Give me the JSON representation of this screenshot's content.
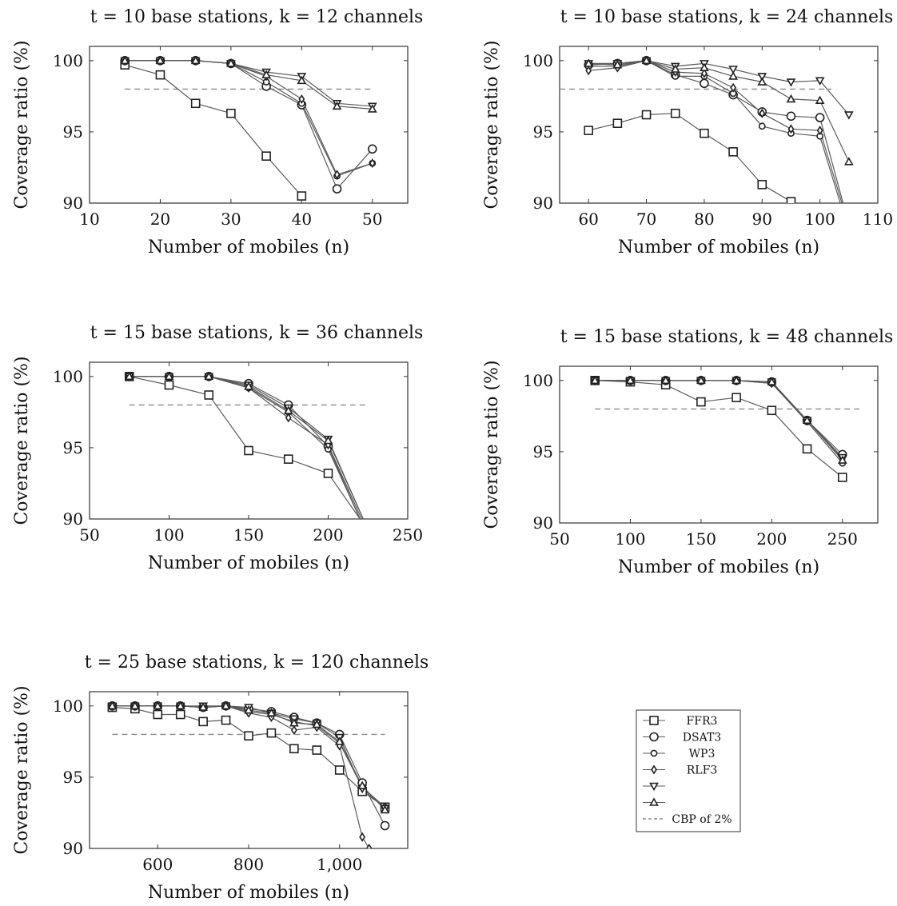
{
  "chart_data": [
    {
      "type": "line",
      "title": "t = 10 base stations, k = 12 channels",
      "xlabel": "Number of mobiles (n)",
      "ylabel": "Coverage ratio (%)",
      "xlim": [
        10,
        55
      ],
      "ylim": [
        90,
        101
      ],
      "xticks": [
        10,
        20,
        30,
        40,
        50
      ],
      "xtick_labels": [
        "10",
        "20",
        "30",
        "40",
        "50"
      ],
      "yticks": [
        90,
        95,
        100
      ],
      "ytick_labels": [
        "90",
        "95",
        "100"
      ],
      "cbp": 98,
      "cbp_range": [
        15,
        50
      ],
      "series": [
        {
          "name": "FFR3",
          "x": [
            15,
            20,
            25,
            30,
            35,
            40
          ],
          "y": [
            99.7,
            99.0,
            97.0,
            96.3,
            93.3,
            90.5
          ]
        },
        {
          "name": "DSAT3",
          "x": [
            15,
            20,
            25,
            30,
            35,
            40,
            45,
            50
          ],
          "y": [
            100,
            100,
            100,
            99.8,
            98.2,
            96.9,
            91.0,
            93.8
          ]
        },
        {
          "name": "WP3",
          "x": [
            15,
            20,
            25,
            30,
            35,
            40,
            45,
            50
          ],
          "y": [
            100,
            100,
            100,
            99.8,
            98.5,
            97.0,
            91.9,
            92.8
          ]
        },
        {
          "name": "RLF3",
          "x": [
            15,
            20,
            25,
            30,
            35,
            40,
            45,
            50
          ],
          "y": [
            100,
            100,
            100,
            99.8,
            98.9,
            97.3,
            92.0,
            92.8
          ]
        },
        {
          "name": "",
          "x": [
            15,
            20,
            25,
            30,
            35,
            40,
            45,
            50
          ],
          "y": [
            100,
            100,
            100,
            99.8,
            99.2,
            98.9,
            97.0,
            96.8
          ]
        },
        {
          "name": "",
          "x": [
            15,
            20,
            25,
            30,
            35,
            40,
            45,
            50
          ],
          "y": [
            100,
            100,
            100,
            99.8,
            99.0,
            98.6,
            96.8,
            96.6
          ]
        }
      ]
    },
    {
      "type": "line",
      "title": "t = 10 base stations, k = 24 channels",
      "xlabel": "Number of mobiles (n)",
      "ylabel": "Coverage ratio (%)",
      "xlim": [
        55,
        110
      ],
      "ylim": [
        90,
        101
      ],
      "xticks": [
        60,
        70,
        80,
        90,
        100,
        110
      ],
      "xtick_labels": [
        "60",
        "70",
        "80",
        "90",
        "100",
        "110"
      ],
      "yticks": [
        90,
        95,
        100
      ],
      "ytick_labels": [
        "90",
        "95",
        "100"
      ],
      "cbp": 98,
      "cbp_range": [
        55,
        102
      ],
      "series": [
        {
          "name": "FFR3",
          "x": [
            60,
            65,
            70,
            75,
            80,
            85,
            90,
            95
          ],
          "y": [
            95.1,
            95.6,
            96.2,
            96.3,
            94.9,
            93.6,
            91.3,
            90.1
          ]
        },
        {
          "name": "DSAT3",
          "x": [
            60,
            65,
            70,
            75,
            80,
            85,
            90,
            95,
            100,
            104
          ],
          "y": [
            99.7,
            99.8,
            100,
            99.0,
            98.4,
            97.6,
            96.4,
            96.1,
            96.0,
            90
          ]
        },
        {
          "name": "WP3",
          "x": [
            60,
            65,
            70,
            75,
            80,
            85,
            90,
            95,
            100,
            103.5
          ],
          "y": [
            99.6,
            99.6,
            100,
            98.9,
            98.9,
            97.7,
            95.4,
            94.9,
            94.7,
            90
          ]
        },
        {
          "name": "RLF3",
          "x": [
            60,
            65,
            70,
            75,
            80,
            85,
            90,
            95,
            100,
            103.8
          ],
          "y": [
            99.3,
            99.5,
            100,
            99.2,
            99.1,
            98.1,
            96.3,
            95.2,
            95.1,
            90
          ]
        },
        {
          "name": "",
          "x": [
            60,
            65,
            70,
            75,
            80,
            85,
            90,
            95,
            100,
            105
          ],
          "y": [
            99.8,
            99.8,
            100,
            99.6,
            99.8,
            99.4,
            98.9,
            98.5,
            98.6,
            96.2
          ]
        },
        {
          "name": "",
          "x": [
            60,
            65,
            70,
            75,
            80,
            85,
            90,
            95,
            100,
            105
          ],
          "y": [
            99.8,
            99.7,
            100,
            99.4,
            99.5,
            98.9,
            98.5,
            97.3,
            97.2,
            92.9
          ]
        }
      ]
    },
    {
      "type": "line",
      "title": "t = 15 base stations, k = 36 channels",
      "xlabel": "Number of mobiles (n)",
      "ylabel": "Coverage ratio (%)",
      "xlim": [
        50,
        250
      ],
      "ylim": [
        90,
        101
      ],
      "xticks": [
        50,
        100,
        150,
        200,
        250
      ],
      "xtick_labels": [
        "50",
        "100",
        "150",
        "200",
        "250"
      ],
      "yticks": [
        90,
        95,
        100
      ],
      "ytick_labels": [
        "90",
        "95",
        "100"
      ],
      "cbp": 98,
      "cbp_range": [
        75,
        225
      ],
      "series": [
        {
          "name": "FFR3",
          "x": [
            75,
            100,
            125,
            150,
            175,
            200,
            220
          ],
          "y": [
            100,
            99.4,
            98.7,
            94.8,
            94.2,
            93.2,
            90
          ]
        },
        {
          "name": "DSAT3",
          "x": [
            75,
            100,
            125,
            150,
            175,
            200,
            220
          ],
          "y": [
            100,
            100,
            100,
            99.5,
            98.0,
            95.1,
            90
          ]
        },
        {
          "name": "WP3",
          "x": [
            75,
            100,
            125,
            150,
            175,
            200,
            220
          ],
          "y": [
            100,
            100,
            100,
            99.2,
            97.5,
            94.9,
            90
          ]
        },
        {
          "name": "RLF3",
          "x": [
            75,
            100,
            125,
            150,
            175,
            200,
            221
          ],
          "y": [
            100,
            100,
            100,
            99.2,
            97.1,
            95.2,
            90
          ]
        },
        {
          "name": "",
          "x": [
            75,
            100,
            125,
            150,
            175,
            200,
            222
          ],
          "y": [
            100,
            100,
            100,
            99.4,
            97.8,
            95.6,
            90
          ]
        },
        {
          "name": "",
          "x": [
            75,
            100,
            125,
            150,
            175,
            200,
            222
          ],
          "y": [
            100,
            100,
            100,
            99.3,
            97.6,
            95.5,
            90
          ]
        }
      ]
    },
    {
      "type": "line",
      "title": "t = 15 base stations, k = 48 channels",
      "xlabel": "Number of mobiles (n)",
      "ylabel": "Coverage ratio (%)",
      "xlim": [
        50,
        275
      ],
      "ylim": [
        90,
        101
      ],
      "xticks": [
        50,
        100,
        150,
        200,
        250
      ],
      "xtick_labels": [
        "50",
        "100",
        "150",
        "200",
        "250"
      ],
      "yticks": [
        90,
        95,
        100
      ],
      "ytick_labels": [
        "90",
        "95",
        "100"
      ],
      "cbp": 98,
      "cbp_range": [
        75,
        262
      ],
      "series": [
        {
          "name": "FFR3",
          "x": [
            75,
            100,
            125,
            150,
            175,
            200,
            225,
            250
          ],
          "y": [
            100,
            99.9,
            99.7,
            98.5,
            98.8,
            97.9,
            95.2,
            93.2
          ]
        },
        {
          "name": "DSAT3",
          "x": [
            75,
            100,
            125,
            150,
            175,
            200,
            225,
            250
          ],
          "y": [
            100,
            100,
            100,
            100,
            100,
            99.9,
            97.2,
            94.8
          ]
        },
        {
          "name": "WP3",
          "x": [
            75,
            100,
            125,
            150,
            175,
            200,
            225,
            250
          ],
          "y": [
            100,
            100,
            100,
            100,
            100,
            99.8,
            97.1,
            94.2
          ]
        },
        {
          "name": "RLF3",
          "x": [
            75,
            100,
            125,
            150,
            175,
            200,
            225,
            250
          ],
          "y": [
            100,
            100,
            100,
            100,
            100,
            99.8,
            97.2,
            94.5
          ]
        },
        {
          "name": "",
          "x": [
            75,
            100,
            125,
            150,
            175,
            200,
            225,
            250
          ],
          "y": [
            100,
            100,
            100,
            100,
            100,
            99.9,
            97.2,
            94.6
          ]
        },
        {
          "name": "",
          "x": [
            75,
            100,
            125,
            150,
            175,
            200,
            225,
            250
          ],
          "y": [
            100,
            100,
            100,
            100,
            100,
            99.9,
            97.2,
            94.4
          ]
        }
      ]
    },
    {
      "type": "line",
      "title": "t = 25 base stations, k = 120 channels",
      "xlabel": "Number of mobiles (n)",
      "ylabel": "Coverage ratio (%)",
      "xlim": [
        450,
        1150
      ],
      "ylim": [
        90,
        101
      ],
      "xticks": [
        600,
        800,
        1000
      ],
      "xtick_labels": [
        "600",
        "800",
        "1,000"
      ],
      "yticks": [
        90,
        95,
        100
      ],
      "ytick_labels": [
        "90",
        "95",
        "100"
      ],
      "cbp": 98,
      "cbp_range": [
        500,
        1100
      ],
      "series": [
        {
          "name": "FFR3",
          "x": [
            500,
            550,
            600,
            650,
            700,
            750,
            800,
            850,
            900,
            950,
            1000,
            1050,
            1100
          ],
          "y": [
            99.9,
            99.8,
            99.4,
            99.4,
            98.9,
            99.0,
            97.9,
            98.1,
            97.0,
            96.9,
            95.5,
            94.0,
            92.9
          ]
        },
        {
          "name": "DSAT3",
          "x": [
            500,
            550,
            600,
            650,
            700,
            750,
            800,
            850,
            900,
            950,
            1000,
            1050,
            1100
          ],
          "y": [
            100,
            100,
            100,
            100,
            99.9,
            100,
            99.8,
            99.6,
            99.2,
            98.8,
            98.0,
            94.6,
            91.6
          ]
        },
        {
          "name": "WP3",
          "x": [
            500,
            550,
            600,
            650,
            700,
            750,
            800,
            850,
            900,
            950,
            1000,
            1050,
            1100
          ],
          "y": [
            100,
            100,
            100,
            100,
            99.9,
            100,
            99.6,
            99.4,
            98.9,
            98.6,
            97.4,
            94.3,
            92.9
          ]
        },
        {
          "name": "RLF3",
          "x": [
            500,
            550,
            600,
            650,
            700,
            750,
            800,
            850,
            900,
            950,
            1000,
            1050,
            1065
          ],
          "y": [
            100,
            100,
            100,
            100,
            99.9,
            100,
            99.5,
            99.2,
            98.3,
            98.5,
            97.2,
            90.8,
            90
          ]
        },
        {
          "name": "",
          "x": [
            500,
            550,
            600,
            650,
            700,
            750,
            800,
            850,
            900,
            950,
            1000,
            1050,
            1100
          ],
          "y": [
            100,
            100,
            100,
            100,
            100,
            100,
            99.9,
            99.5,
            99.1,
            98.8,
            97.8,
            94.2,
            92.8
          ]
        },
        {
          "name": "",
          "x": [
            500,
            550,
            600,
            650,
            700,
            750,
            800,
            850,
            900,
            950,
            1000,
            1050,
            1100
          ],
          "y": [
            100,
            100,
            100,
            100,
            99.9,
            100,
            99.7,
            99.5,
            98.8,
            98.7,
            97.5,
            94.4,
            92.7
          ]
        }
      ]
    }
  ],
  "legend": {
    "entries": [
      {
        "label": "FFR3",
        "marker": "square"
      },
      {
        "label": "DSAT3",
        "marker": "circle"
      },
      {
        "label": "WP3",
        "marker": "circle-small"
      },
      {
        "label": "RLF3",
        "marker": "diamond"
      },
      {
        "label": "",
        "marker": "triangle-down"
      },
      {
        "label": "",
        "marker": "triangle-up"
      },
      {
        "label": "CBP of 2%",
        "marker": "dashed-line"
      }
    ]
  },
  "colors": {
    "line": "#5a5a5a",
    "marker": "#222222",
    "cbp": "#8a8a8a",
    "axis": "#333333"
  }
}
